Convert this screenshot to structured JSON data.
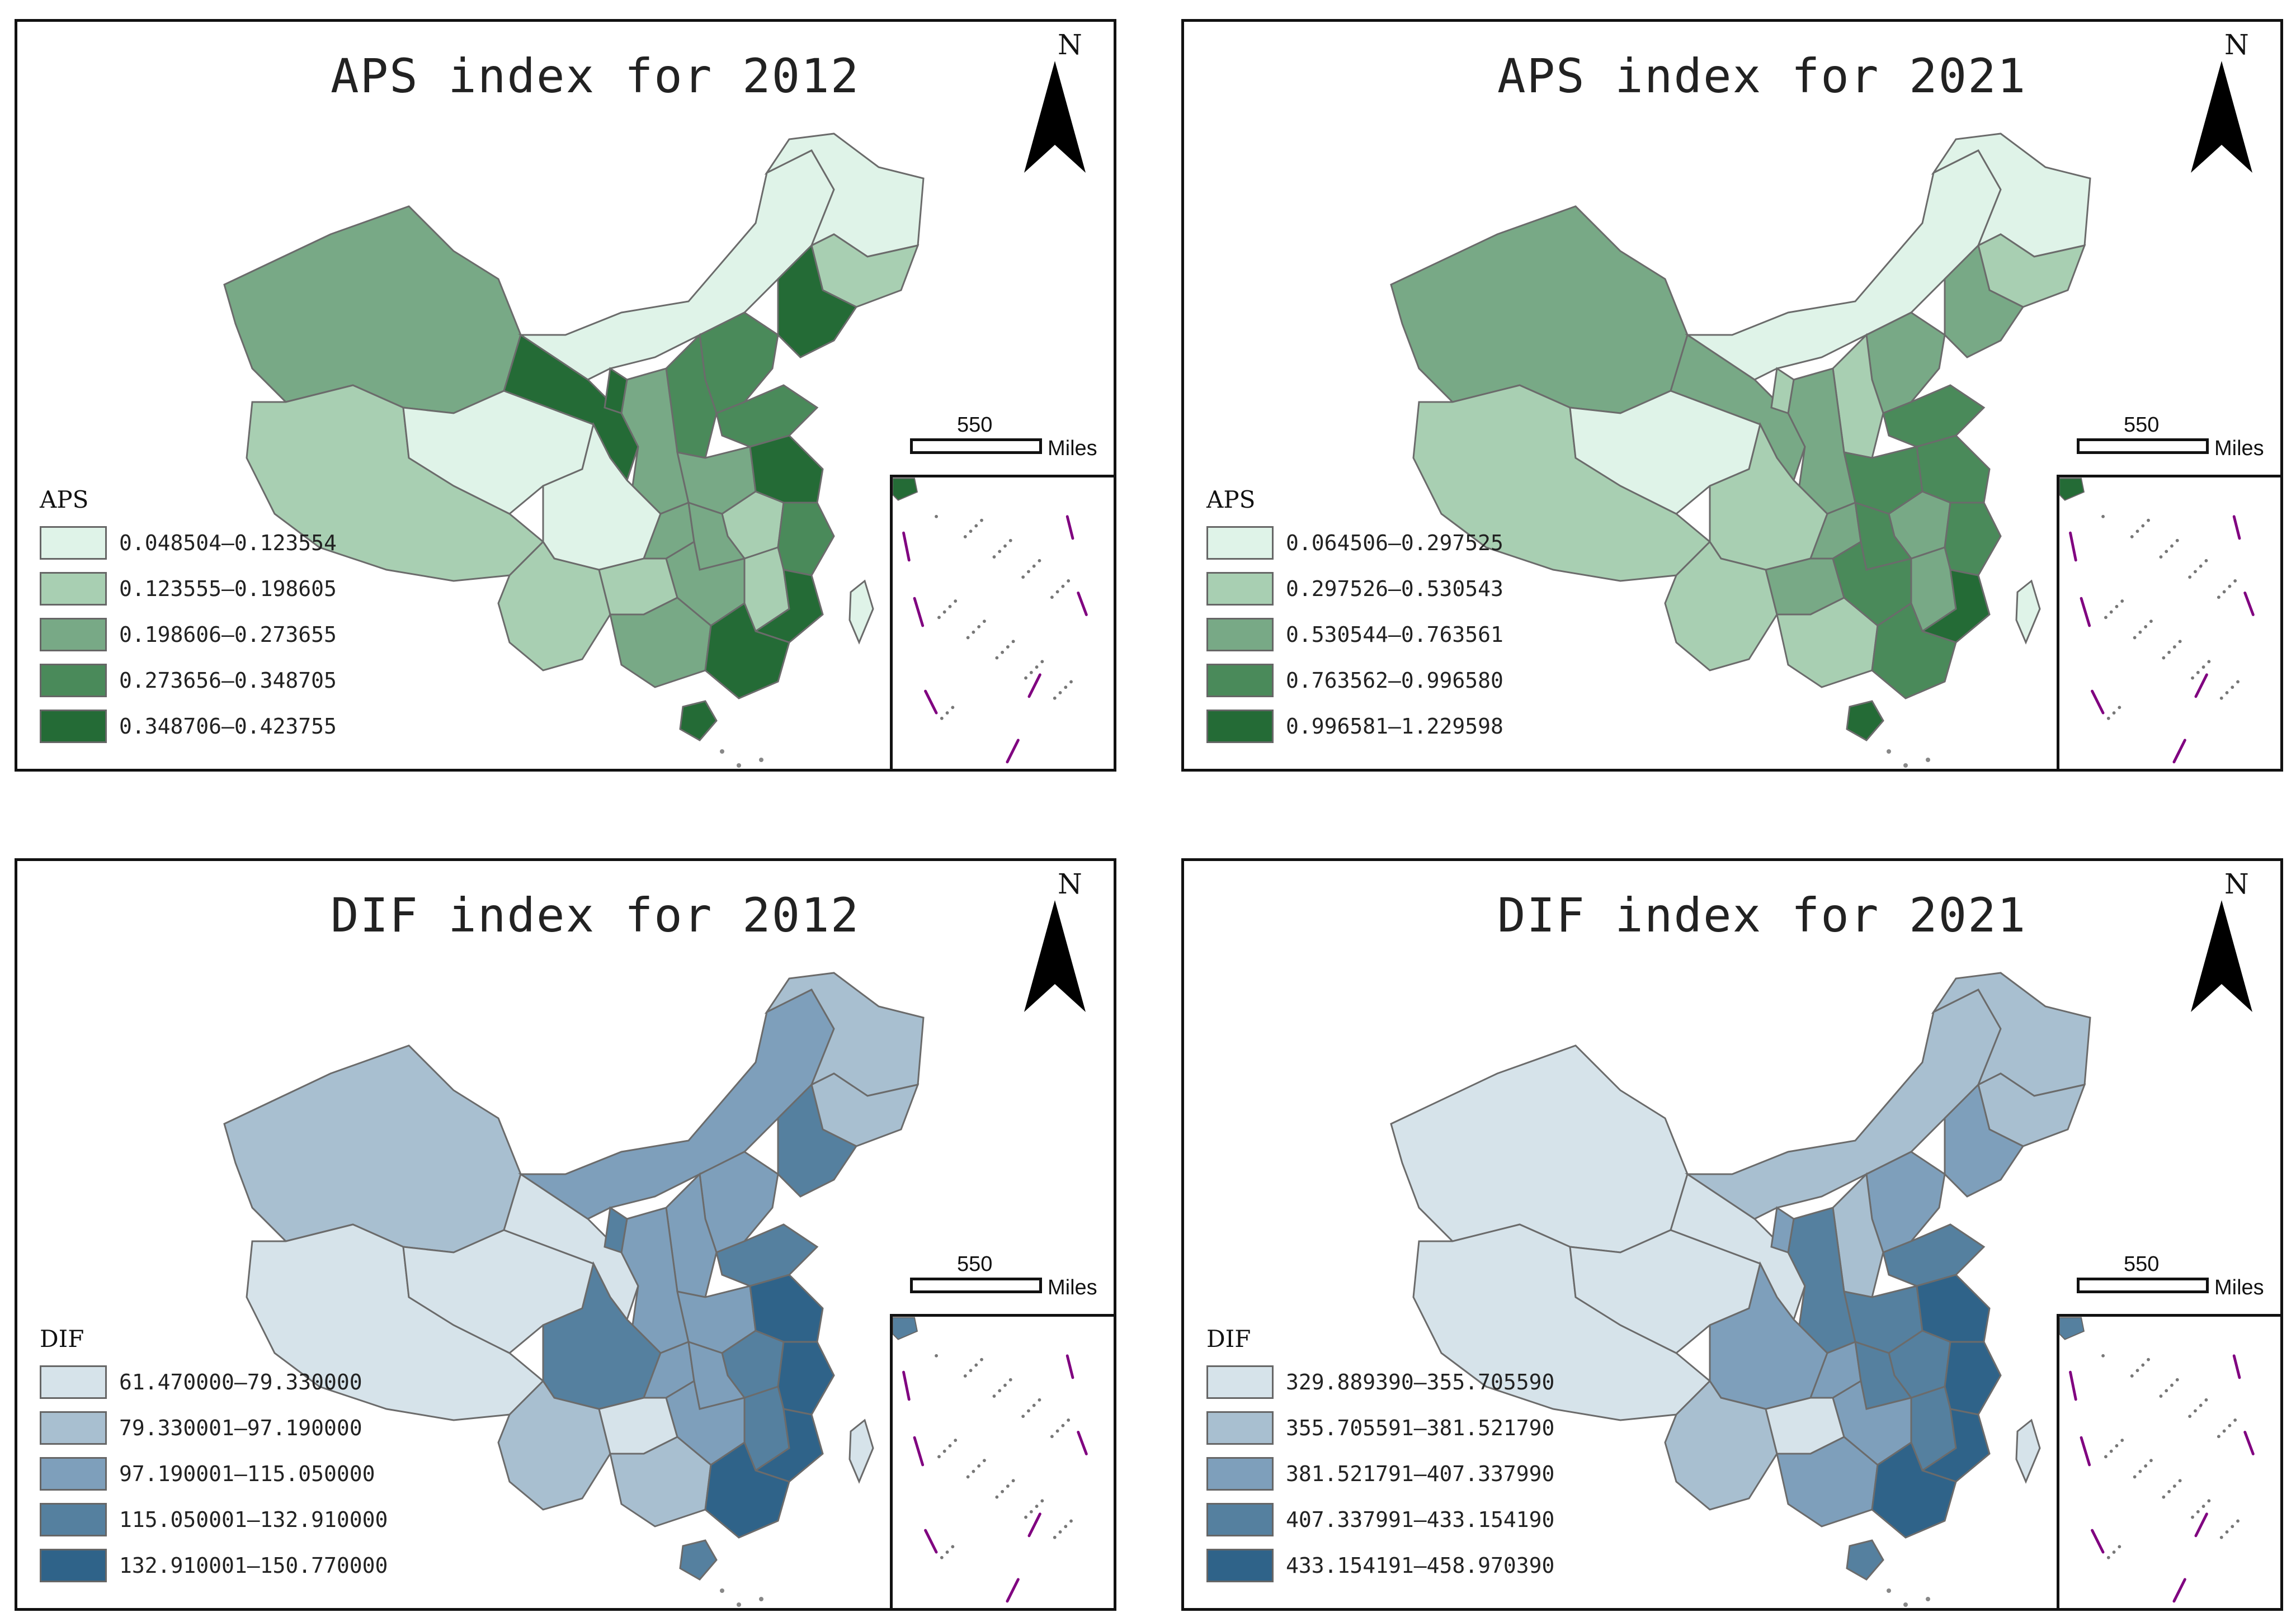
{
  "panels": [
    {
      "id": "aps-2012",
      "title": "APS index for 2012",
      "north": "N",
      "scale": {
        "value": "550",
        "unit": "Miles"
      },
      "legend": {
        "title": "APS",
        "classes": [
          {
            "label": "0.048504—0.123554",
            "color": "#dff3e8"
          },
          {
            "label": "0.123555—0.198605",
            "color": "#a8cfb2"
          },
          {
            "label": "0.198606—0.273655",
            "color": "#78a986"
          },
          {
            "label": "0.273656—0.348705",
            "color": "#4a8a5a"
          },
          {
            "label": "0.348706—0.423755",
            "color": "#246b36"
          }
        ]
      }
    },
    {
      "id": "aps-2021",
      "title": "APS index for 2021",
      "north": "N",
      "scale": {
        "value": "550",
        "unit": "Miles"
      },
      "legend": {
        "title": "APS",
        "classes": [
          {
            "label": "0.064506—0.297525",
            "color": "#dff3e8"
          },
          {
            "label": "0.297526—0.530543",
            "color": "#a8cfb2"
          },
          {
            "label": "0.530544—0.763561",
            "color": "#78a986"
          },
          {
            "label": "0.763562—0.996580",
            "color": "#4a8a5a"
          },
          {
            "label": "0.996581—1.229598",
            "color": "#246b36"
          }
        ]
      }
    },
    {
      "id": "dif-2012",
      "title": "DIF index for 2012",
      "north": "N",
      "scale": {
        "value": "550",
        "unit": "Miles"
      },
      "legend": {
        "title": "DIF",
        "classes": [
          {
            "label": "61.470000—79.330000",
            "color": "#d6e3ea"
          },
          {
            "label": "79.330001—97.190000",
            "color": "#a8bfd0"
          },
          {
            "label": "97.190001—115.050000",
            "color": "#7e9fbb"
          },
          {
            "label": "115.050001—132.910000",
            "color": "#55809f"
          },
          {
            "label": "132.910001—150.770000",
            "color": "#2f6389"
          }
        ]
      }
    },
    {
      "id": "dif-2021",
      "title": "DIF index for 2021",
      "north": "N",
      "scale": {
        "value": "550",
        "unit": "Miles"
      },
      "legend": {
        "title": "DIF",
        "classes": [
          {
            "label": "329.889390—355.705590",
            "color": "#d6e3ea"
          },
          {
            "label": "355.705591—381.521790",
            "color": "#a8bfd0"
          },
          {
            "label": "381.521791—407.337990",
            "color": "#7e9fbb"
          },
          {
            "label": "407.337991—433.154190",
            "color": "#55809f"
          },
          {
            "label": "433.154191—458.970390",
            "color": "#2f6389"
          }
        ]
      }
    }
  ]
}
